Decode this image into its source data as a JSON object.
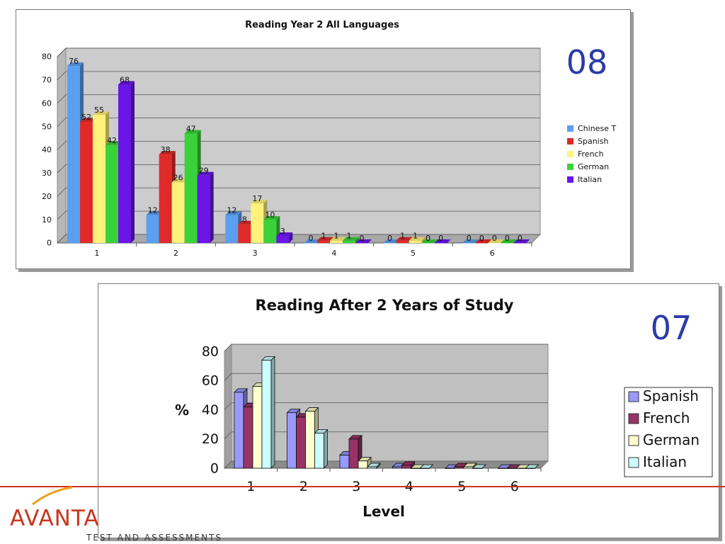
{
  "slide": {
    "logo_text": "AVANTA",
    "logo_tagline": "TEST AND ASSESSMENTS",
    "logo_color": "#c8361e",
    "swoosh_color": "#f0a018"
  },
  "chart_data": [
    {
      "type": "bar",
      "style": "3d-clustered-column",
      "title": "Reading Year 2 All Languages",
      "corner_label": "08",
      "xlabel": "",
      "ylabel": "",
      "categories": [
        "1",
        "2",
        "3",
        "4",
        "5",
        "6"
      ],
      "ylim": [
        0,
        80
      ],
      "yticks": [
        0,
        10,
        20,
        30,
        40,
        50,
        60,
        70,
        80
      ],
      "grid": true,
      "legend_position": "right",
      "data_labels": true,
      "series": [
        {
          "name": "Chinese T",
          "color": "#5b9ff0",
          "values": [
            76,
            12,
            12,
            0,
            0,
            0
          ]
        },
        {
          "name": "Spanish",
          "color": "#e02a2a",
          "values": [
            52,
            38,
            8,
            1,
            1,
            0
          ]
        },
        {
          "name": "French",
          "color": "#fff27a",
          "values": [
            55,
            26,
            17,
            1,
            1,
            0
          ]
        },
        {
          "name": "German",
          "color": "#3ad23a",
          "values": [
            42,
            47,
            10,
            1,
            0,
            0
          ]
        },
        {
          "name": "Italian",
          "color": "#6a16e6",
          "values": [
            68,
            29,
            3,
            0,
            0,
            0
          ]
        }
      ]
    },
    {
      "type": "bar",
      "style": "3d-clustered-column",
      "title": "Reading After 2 Years of Study",
      "corner_label": "07",
      "xlabel": "Level",
      "ylabel": "%",
      "categories": [
        "1",
        "2",
        "3",
        "4",
        "5",
        "6"
      ],
      "ylim": [
        0,
        80
      ],
      "yticks": [
        0,
        20,
        40,
        60,
        80
      ],
      "grid": true,
      "legend_position": "right",
      "data_labels": false,
      "series": [
        {
          "name": "Spanish",
          "color": "#9999ff",
          "values": [
            52,
            38,
            9,
            1,
            0,
            0
          ]
        },
        {
          "name": "French",
          "color": "#993366",
          "values": [
            42,
            35,
            20,
            2,
            1,
            0
          ]
        },
        {
          "name": "German",
          "color": "#ffffcc",
          "values": [
            56,
            39,
            5,
            0,
            1,
            0
          ]
        },
        {
          "name": "Italian",
          "color": "#ccffff",
          "values": [
            74,
            24,
            1,
            0,
            0,
            0
          ]
        }
      ]
    }
  ]
}
